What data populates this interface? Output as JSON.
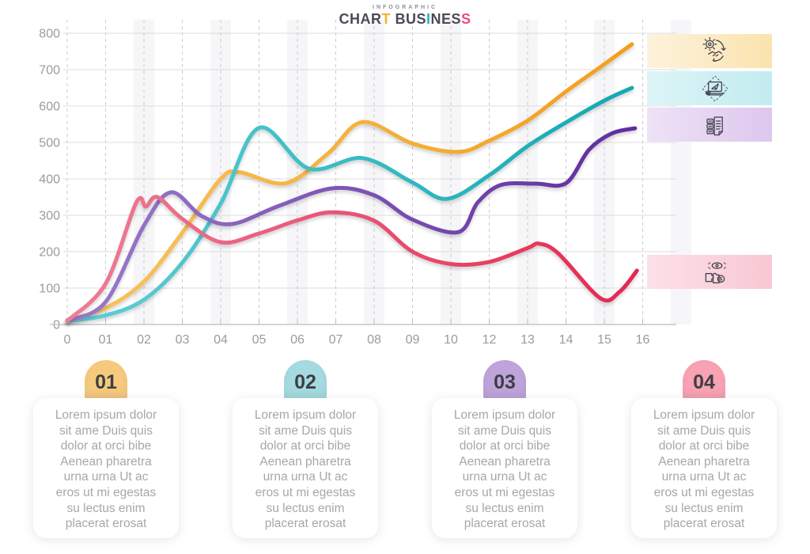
{
  "header": {
    "eyebrow": "INFOGRAPHIC",
    "brand_parts": [
      {
        "text": "CHAR",
        "color": "#4b4b56"
      },
      {
        "text": "T",
        "color": "#f2b32c"
      },
      {
        "text": " BUS",
        "color": "#4b4b56"
      },
      {
        "text": "I",
        "color": "#29b5be"
      },
      {
        "text": "NES",
        "color": "#4b4b56"
      },
      {
        "text": "S",
        "color": "#e94f75"
      }
    ]
  },
  "chart_data": {
    "type": "line",
    "title": "",
    "xlabel": "",
    "ylabel": "",
    "ylim": [
      0,
      800
    ],
    "y_ticks": [
      0,
      100,
      200,
      300,
      400,
      500,
      600,
      700,
      800
    ],
    "x_tick_labels": [
      "0",
      "01",
      "02",
      "03",
      "04",
      "05",
      "06",
      "07",
      "08",
      "09",
      "10",
      "12",
      "13",
      "14",
      "15",
      "16"
    ],
    "note": "x axis labels skip 11; grid has solid horizontal lines, dashed vertical lines and faint alternating background stripes; legend is icon bands at right",
    "grid": {
      "horizontal": "solid",
      "vertical": "dashed",
      "stripes": true
    },
    "legend_position": "right",
    "series": [
      {
        "name": "01",
        "icon": "gear-handshake-icon",
        "band_color_left": "#fdf2dc",
        "band_color_right": "#fbe3ae",
        "line_color_start": "#f7c45f",
        "line_color_end": "#f49d1c",
        "points": [
          [
            0,
            12
          ],
          [
            1,
            45
          ],
          [
            2,
            118
          ],
          [
            3,
            252
          ],
          [
            4,
            400
          ],
          [
            4.5,
            418
          ],
          [
            5.7,
            388
          ],
          [
            6.8,
            470
          ],
          [
            7.7,
            556
          ],
          [
            9,
            497
          ],
          [
            10.2,
            474
          ],
          [
            11,
            505
          ],
          [
            12,
            560
          ],
          [
            13,
            640
          ],
          [
            14,
            715
          ],
          [
            14.72,
            770
          ]
        ]
      },
      {
        "name": "02",
        "icon": "laptop-launch-icon",
        "band_color_left": "#ddf4f6",
        "band_color_right": "#c2ecf0",
        "line_color_start": "#5fcfd4",
        "line_color_end": "#12a7b3",
        "points": [
          [
            0,
            10
          ],
          [
            1,
            25
          ],
          [
            2,
            68
          ],
          [
            3,
            170
          ],
          [
            4,
            332
          ],
          [
            5,
            540
          ],
          [
            6.3,
            428
          ],
          [
            7.7,
            457
          ],
          [
            9,
            390
          ],
          [
            9.9,
            345
          ],
          [
            11,
            410
          ],
          [
            12,
            490
          ],
          [
            13,
            555
          ],
          [
            14,
            615
          ],
          [
            14.72,
            650
          ]
        ]
      },
      {
        "name": "03",
        "icon": "documents-icon",
        "band_color_left": "#eee2f6",
        "band_color_right": "#ddc7ee",
        "line_color_start": "#9b7bcb",
        "line_color_end": "#5e2b9e",
        "points": [
          [
            0,
            10
          ],
          [
            1,
            62
          ],
          [
            2,
            272
          ],
          [
            2.7,
            363
          ],
          [
            3.5,
            298
          ],
          [
            4.3,
            276
          ],
          [
            5.5,
            325
          ],
          [
            6.9,
            374
          ],
          [
            8,
            355
          ],
          [
            9,
            288
          ],
          [
            10.2,
            254
          ],
          [
            10.7,
            335
          ],
          [
            11.3,
            383
          ],
          [
            12.2,
            387
          ],
          [
            13,
            388
          ],
          [
            13.6,
            480
          ],
          [
            14.2,
            525
          ],
          [
            14.8,
            539
          ]
        ]
      },
      {
        "name": "04",
        "icon": "puzzle-vision-icon",
        "band_color_left": "#fce0e8",
        "band_color_right": "#f8c8d3",
        "line_color_start": "#ee7d97",
        "line_color_end": "#e4274f",
        "points": [
          [
            0,
            10
          ],
          [
            1,
            112
          ],
          [
            1.8,
            335
          ],
          [
            2.05,
            324
          ],
          [
            2.35,
            350
          ],
          [
            3,
            290
          ],
          [
            4,
            226
          ],
          [
            5,
            250
          ],
          [
            6,
            286
          ],
          [
            6.9,
            308
          ],
          [
            8,
            285
          ],
          [
            9,
            200
          ],
          [
            10,
            166
          ],
          [
            11,
            172
          ],
          [
            12,
            210
          ],
          [
            12.3,
            222
          ],
          [
            12.8,
            195
          ],
          [
            13.9,
            72
          ],
          [
            14.4,
            90
          ],
          [
            14.85,
            148
          ]
        ]
      }
    ]
  },
  "steps": [
    {
      "number": "01",
      "badge_color": "#f6ca7d",
      "text": "Lorem ipsum dolor\nsit ame Duis quis\ndolor at orci bibe\nAenean pharetra\nurna urna Ut ac\neros ut mi egestas\nsu lectus enim\nplacerat erosat"
    },
    {
      "number": "02",
      "badge_color": "#a5dbe0",
      "text": "Lorem ipsum dolor\nsit ame Duis quis\ndolor at orci bibe\nAenean pharetra\nurna urna Ut ac\neros ut mi egestas\nsu lectus enim\nplacerat erosat"
    },
    {
      "number": "03",
      "badge_color": "#bea4da",
      "text": "Lorem ipsum dolor\nsit ame Duis quis\ndolor at orci bibe\nAenean pharetra\nurna urna Ut ac\neros ut mi egestas\nsu lectus enim\nplacerat erosat"
    },
    {
      "number": "04",
      "badge_color": "#f9a2b3",
      "text": "Lorem ipsum dolor\nsit ame Duis quis\ndolor at orci bibe\nAenean pharetra\nurna urna Ut ac\neros ut mi egestas\nsu lectus enim\nplacerat erosat"
    }
  ]
}
